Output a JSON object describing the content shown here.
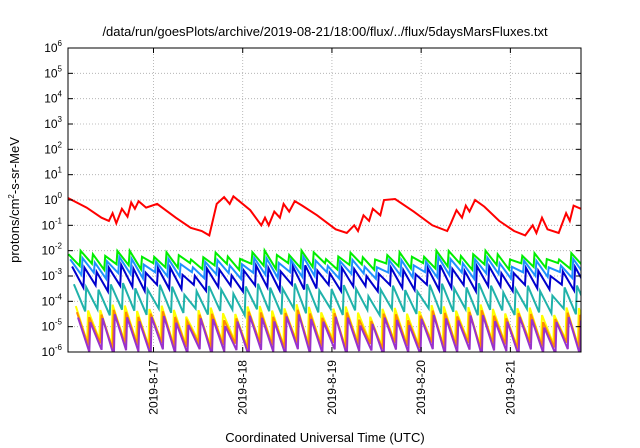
{
  "chart_data": {
    "type": "line",
    "title": "/data/run/goesPlots/archive/2019-08-21/18:00/flux/../flux/5daysMarsFluxes.txt",
    "xlabel": "Coordinated Universal Time (UTC)",
    "ylabel": {
      "pre": "protons/cm",
      "sup": "2",
      "post": "-s-sr-MeV"
    },
    "y_scale": "log",
    "ylim_exp": [
      -6,
      6
    ],
    "y_tick_exponents": [
      -6,
      -5,
      -4,
      -3,
      -2,
      -1,
      0,
      1,
      2,
      3,
      4,
      5,
      6
    ],
    "x_axis_type": "date",
    "xlim": [
      "2019-08-16 01:00",
      "2019-08-21 19:00"
    ],
    "x_ticks": [
      {
        "value": "2019-08-17",
        "label": "2019-8-17"
      },
      {
        "value": "2019-08-18",
        "label": "2019-8-18"
      },
      {
        "value": "2019-08-19",
        "label": "2019-8-19"
      },
      {
        "value": "2019-08-20",
        "label": "2019-8-20"
      },
      {
        "value": "2019-08-21",
        "label": "2019-8-21"
      }
    ],
    "grid": true,
    "legend": "none",
    "series": [
      {
        "color": "#ff0000",
        "points": [
          [
            "2019-08-16 01:00",
            1.2
          ],
          [
            "2019-08-16 06:00",
            0.5
          ],
          [
            "2019-08-16 10:00",
            0.2
          ],
          [
            "2019-08-16 12:00",
            0.15
          ],
          [
            "2019-08-16 13:00",
            0.3
          ],
          [
            "2019-08-16 14:00",
            0.12
          ],
          [
            "2019-08-16 15:30",
            0.45
          ],
          [
            "2019-08-16 17:00",
            0.22
          ],
          [
            "2019-08-16 18:00",
            0.8
          ],
          [
            "2019-08-16 19:00",
            0.45
          ],
          [
            "2019-08-16 20:00",
            0.9
          ],
          [
            "2019-08-16 22:00",
            0.5
          ],
          [
            "2019-08-17 01:00",
            0.7
          ],
          [
            "2019-08-17 06:00",
            0.2
          ],
          [
            "2019-08-17 10:00",
            0.08
          ],
          [
            "2019-08-17 13:00",
            0.06
          ],
          [
            "2019-08-17 15:00",
            0.04
          ],
          [
            "2019-08-17 17:00",
            0.7
          ],
          [
            "2019-08-17 19:00",
            1.3
          ],
          [
            "2019-08-17 20:30",
            0.7
          ],
          [
            "2019-08-17 21:30",
            1.4
          ],
          [
            "2019-08-18 02:00",
            0.4
          ],
          [
            "2019-08-18 05:00",
            0.1
          ],
          [
            "2019-08-18 06:00",
            0.2
          ],
          [
            "2019-08-18 07:00",
            0.1
          ],
          [
            "2019-08-18 08:30",
            0.35
          ],
          [
            "2019-08-18 10:00",
            0.2
          ],
          [
            "2019-08-18 11:00",
            0.7
          ],
          [
            "2019-08-18 12:30",
            0.35
          ],
          [
            "2019-08-18 14:00",
            0.9
          ],
          [
            "2019-08-18 16:00",
            0.6
          ],
          [
            "2019-08-18 20:00",
            0.25
          ],
          [
            "2019-08-19 01:00",
            0.07
          ],
          [
            "2019-08-19 04:00",
            0.05
          ],
          [
            "2019-08-19 06:00",
            0.1
          ],
          [
            "2019-08-19 07:00",
            0.06
          ],
          [
            "2019-08-19 08:30",
            0.25
          ],
          [
            "2019-08-19 10:00",
            0.15
          ],
          [
            "2019-08-19 11:00",
            0.45
          ],
          [
            "2019-08-19 13:00",
            0.25
          ],
          [
            "2019-08-19 14:00",
            1.0
          ],
          [
            "2019-08-19 17:00",
            1.1
          ],
          [
            "2019-08-19 22:00",
            0.35
          ],
          [
            "2019-08-20 03:00",
            0.1
          ],
          [
            "2019-08-20 07:00",
            0.06
          ],
          [
            "2019-08-20 08:00",
            0.12
          ],
          [
            "2019-08-20 09:30",
            0.4
          ],
          [
            "2019-08-20 11:00",
            0.2
          ],
          [
            "2019-08-20 12:00",
            0.6
          ],
          [
            "2019-08-20 13:00",
            0.35
          ],
          [
            "2019-08-20 14:30",
            1.0
          ],
          [
            "2019-08-20 17:00",
            0.55
          ],
          [
            "2019-08-20 21:00",
            0.15
          ],
          [
            "2019-08-21 01:00",
            0.06
          ],
          [
            "2019-08-21 04:00",
            0.04
          ],
          [
            "2019-08-21 06:00",
            0.1
          ],
          [
            "2019-08-21 07:00",
            0.05
          ],
          [
            "2019-08-21 08:30",
            0.2
          ],
          [
            "2019-08-21 10:00",
            0.07
          ],
          [
            "2019-08-21 13:00",
            0.05
          ],
          [
            "2019-08-21 15:00",
            0.3
          ],
          [
            "2019-08-21 16:00",
            0.15
          ],
          [
            "2019-08-21 17:00",
            0.6
          ],
          [
            "2019-08-21 19:00",
            0.45
          ]
        ]
      },
      {
        "color": "#00ee00",
        "base": 0.0045,
        "low": 0.0025,
        "peak": 0.007,
        "period_hours": 3.3,
        "phase": 0.1
      },
      {
        "color": "#1e90ff",
        "base": 0.0022,
        "low": 0.0011,
        "peak": 0.0038,
        "period_hours": 3.3,
        "phase": 0.6
      },
      {
        "color": "#0000cd",
        "base": 0.001,
        "low": 0.00035,
        "peak": 0.0018,
        "period_hours": 3.3,
        "phase": 1.1
      },
      {
        "color": "#20b2aa",
        "base": 0.00015,
        "low": 4e-05,
        "peak": 0.00035,
        "period_hours": 3.3,
        "phase": 1.6
      },
      {
        "color": "#ffff00",
        "base": 1.2e-05,
        "low": 2.5e-06,
        "peak": 5e-05,
        "period_hours": 3.3,
        "phase": 2.1
      },
      {
        "color": "#ff8c00",
        "base": 9e-06,
        "low": 1.8e-06,
        "peak": 3e-05,
        "period_hours": 3.3,
        "phase": 2.4
      },
      {
        "color": "#9932cc",
        "base": 6e-06,
        "low": 1e-06,
        "peak": 2e-05,
        "period_hours": 3.3,
        "phase": 2.7
      }
    ]
  }
}
